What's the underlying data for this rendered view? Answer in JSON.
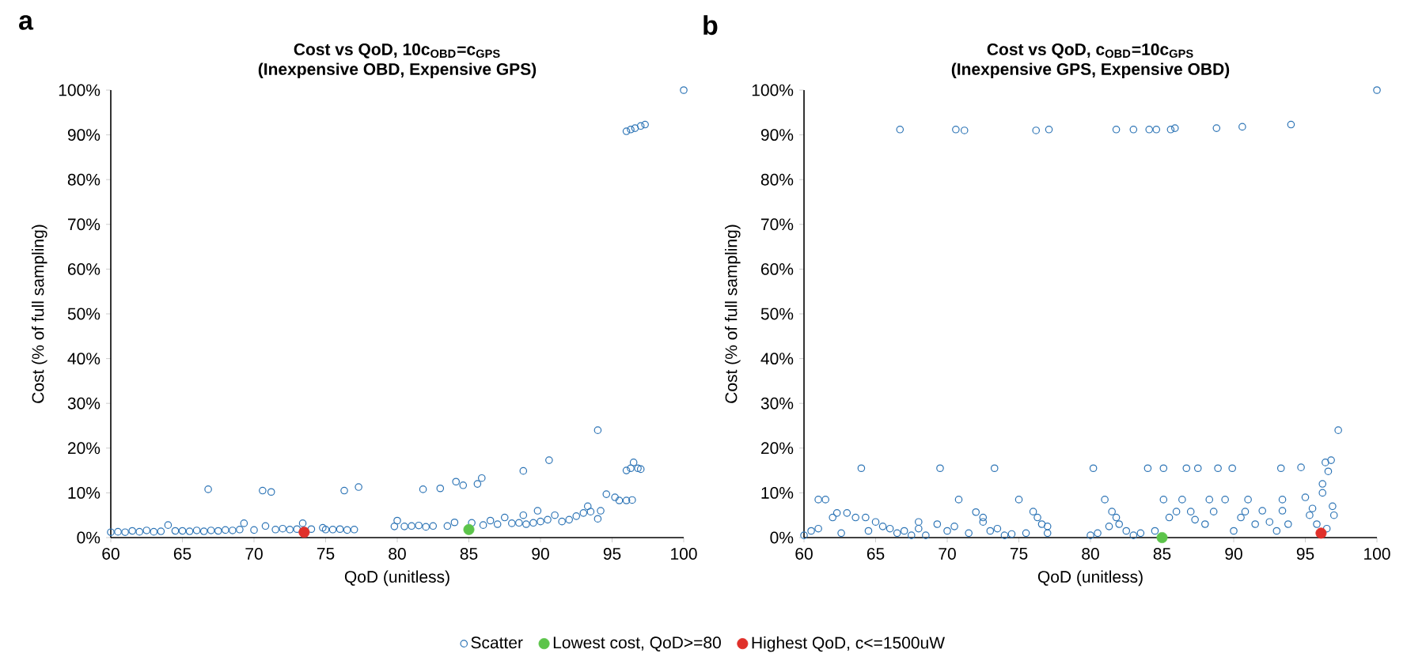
{
  "chart_data": [
    {
      "type": "scatter",
      "title": "Cost vs QoD, 10c$_{OBD}$=c$_{GPS}$",
      "subtitle": "(Inexpensive OBD, Expensive GPS)",
      "xlabel": "QoD (unitless)",
      "ylabel": "Cost (% of full sampling)",
      "annotations": [
        "a"
      ],
      "xlim": [
        60,
        100
      ],
      "ylim": [
        0,
        100
      ],
      "xticks": [
        60,
        65,
        70,
        75,
        80,
        85,
        90,
        95,
        100
      ],
      "yticks": [
        {
          "value": 0,
          "label": "0%"
        },
        {
          "value": 10,
          "label": "10%"
        },
        {
          "value": 20,
          "label": "20%"
        },
        {
          "value": 30,
          "label": "30%"
        },
        {
          "value": 40,
          "label": "40%"
        },
        {
          "value": 50,
          "label": "50%"
        },
        {
          "value": 60,
          "label": "60%"
        },
        {
          "value": 70,
          "label": "70%"
        },
        {
          "value": 80,
          "label": "80%"
        },
        {
          "value": 90,
          "label": "90%"
        },
        {
          "value": 100,
          "label": "100%"
        }
      ],
      "marker": "circle",
      "legend": "bottom",
      "series": [
        {
          "name": "Scatter",
          "color": "#2e75b6",
          "x": [
            60,
            60.5,
            61,
            61.5,
            62,
            62.5,
            63,
            63.5,
            64,
            64.5,
            65,
            65.5,
            66,
            66.5,
            66.8,
            67,
            67.5,
            68,
            68.5,
            69,
            69.3,
            70,
            70.6,
            70.8,
            71.2,
            71.5,
            72,
            72.5,
            73,
            73.4,
            74,
            74.8,
            75,
            75.5,
            76,
            76.3,
            76.5,
            77,
            77.3,
            79.8,
            80,
            80.5,
            81,
            81.5,
            81.8,
            82,
            82.5,
            83,
            83.5,
            84,
            84.1,
            84.6,
            85.2,
            85.6,
            85.9,
            86,
            86.5,
            87,
            87.5,
            88,
            88.5,
            88.8,
            88.8,
            89,
            89.5,
            89.8,
            90,
            90.5,
            90.6,
            91,
            91.5,
            92,
            92.5,
            93,
            93.3,
            93.5,
            94,
            94,
            94.2,
            94.6,
            95.2,
            95.5,
            96,
            96.4,
            96,
            96.3,
            96.5,
            96.8,
            97,
            96,
            96.3,
            96.6,
            97,
            97.3,
            100
          ],
          "values": [
            1.2,
            1.3,
            1.2,
            1.5,
            1.3,
            1.6,
            1.3,
            1.4,
            2.8,
            1.5,
            1.5,
            1.4,
            1.6,
            1.4,
            10.8,
            1.6,
            1.5,
            1.7,
            1.6,
            1.8,
            3.2,
            1.7,
            10.5,
            2.6,
            10.2,
            1.8,
            2,
            1.8,
            1.9,
            3.2,
            1.9,
            2.2,
            1.8,
            1.8,
            1.9,
            10.5,
            1.7,
            1.8,
            11.3,
            2.5,
            3.8,
            2.5,
            2.6,
            2.7,
            10.8,
            2.4,
            2.6,
            11,
            2.6,
            3.4,
            12.5,
            11.7,
            3.3,
            12,
            13.3,
            2.8,
            3.8,
            3,
            4.5,
            3.2,
            3.3,
            5,
            14.9,
            3,
            3.3,
            6,
            3.6,
            4,
            17.3,
            5,
            3.6,
            4,
            4.8,
            5.5,
            7,
            5.8,
            24,
            4.2,
            6,
            9.7,
            9,
            8.3,
            8.3,
            8.4,
            15,
            15.5,
            16.8,
            15.5,
            15.3,
            90.8,
            91.2,
            91.5,
            92,
            92.3,
            100
          ]
        },
        {
          "name": "Lowest cost, QoD>=80",
          "color": "#5cc44a",
          "x": [
            85
          ],
          "values": [
            1.8
          ]
        },
        {
          "name": "Highest QoD, c<=1500uW",
          "color": "#e0302a",
          "x": [
            73.5
          ],
          "values": [
            1.2
          ]
        }
      ]
    },
    {
      "type": "scatter",
      "title": "Cost vs QoD, c$_{OBD}$=10c$_{GPS}$",
      "subtitle": "(Inexpensive GPS, Expensive OBD)",
      "xlabel": "QoD (unitless)",
      "ylabel": "Cost (% of full sampling)",
      "annotations": [
        "b"
      ],
      "xlim": [
        60,
        100
      ],
      "ylim": [
        0,
        100
      ],
      "xticks": [
        60,
        65,
        70,
        75,
        80,
        85,
        90,
        95,
        100
      ],
      "yticks": [
        {
          "value": 0,
          "label": "0%"
        },
        {
          "value": 10,
          "label": "10%"
        },
        {
          "value": 20,
          "label": "20%"
        },
        {
          "value": 30,
          "label": "30%"
        },
        {
          "value": 40,
          "label": "40%"
        },
        {
          "value": 50,
          "label": "50%"
        },
        {
          "value": 60,
          "label": "60%"
        },
        {
          "value": 70,
          "label": "70%"
        },
        {
          "value": 80,
          "label": "80%"
        },
        {
          "value": 90,
          "label": "90%"
        },
        {
          "value": 100,
          "label": "100%"
        }
      ],
      "marker": "circle",
      "series": [
        {
          "color": "#2e75b6",
          "x": [
            60,
            60.5,
            61,
            61,
            61.5,
            62,
            62.3,
            62.6,
            63,
            63.6,
            64,
            64.3,
            64.5,
            65,
            65.5,
            66,
            66.5,
            67,
            67.5,
            68,
            68,
            68.5,
            69.3,
            69.5,
            70,
            70.5,
            70.8,
            71.5,
            72,
            72.5,
            72.5,
            73,
            73.3,
            73.5,
            74,
            74.5,
            75,
            75.5,
            76,
            76.3,
            76.6,
            77,
            77,
            80,
            80.2,
            80.5,
            81,
            81.3,
            81.5,
            81.8,
            82,
            82.5,
            83,
            83.5,
            84,
            84.5,
            85.1,
            85.1,
            85.5,
            86,
            86.4,
            86.7,
            87,
            87.3,
            87.5,
            88,
            88.3,
            88.6,
            88.9,
            89.4,
            89.9,
            90,
            90.5,
            90.8,
            91,
            91.5,
            92,
            92.5,
            93,
            93.3,
            93.4,
            93.4,
            93.8,
            94.7,
            95,
            95.3,
            95.5,
            95.8,
            96.2,
            96.2,
            96.4,
            96.6,
            96.8,
            96.9,
            97,
            97.3,
            96.5,
            66.7,
            70.6,
            71.2,
            76.2,
            77.1,
            81.8,
            83,
            84.1,
            84.6,
            85.6,
            85.9,
            88.8,
            90.6,
            94,
            100
          ],
          "values": [
            0.5,
            1.5,
            8.5,
            2,
            8.5,
            4.5,
            5.5,
            1,
            5.5,
            4.5,
            15.5,
            4.5,
            1.5,
            3.5,
            2.5,
            2,
            1,
            1.5,
            0.5,
            3.5,
            2,
            0.5,
            3,
            15.5,
            1.5,
            2.5,
            8.5,
            1,
            5.7,
            4.5,
            3.5,
            1.5,
            15.5,
            2,
            0.5,
            0.8,
            8.5,
            1,
            5.8,
            4.5,
            3,
            1,
            2.5,
            0.5,
            15.5,
            1,
            8.5,
            2.5,
            5.8,
            4.5,
            3,
            1.5,
            0.5,
            1,
            15.5,
            1.5,
            15.5,
            8.5,
            4.5,
            5.8,
            8.5,
            15.5,
            5.8,
            4,
            15.5,
            3,
            8.5,
            5.8,
            15.5,
            8.5,
            15.5,
            1.5,
            4.5,
            5.8,
            8.5,
            3,
            6,
            3.5,
            1.5,
            15.5,
            8.5,
            6,
            3,
            15.7,
            9,
            5,
            6.5,
            3,
            10,
            12,
            16.8,
            14.8,
            17.3,
            7,
            5,
            24,
            2,
            91.2,
            91.2,
            91,
            91,
            91.2,
            91.2,
            91.2,
            91.2,
            91.2,
            91.2,
            91.5,
            91.5,
            91.8,
            92.3,
            100
          ]
        },
        {
          "color": "#5cc44a",
          "x": [
            85
          ],
          "values": [
            0
          ]
        },
        {
          "color": "#e0302a",
          "x": [
            96.1
          ],
          "values": [
            1
          ]
        }
      ]
    }
  ]
}
